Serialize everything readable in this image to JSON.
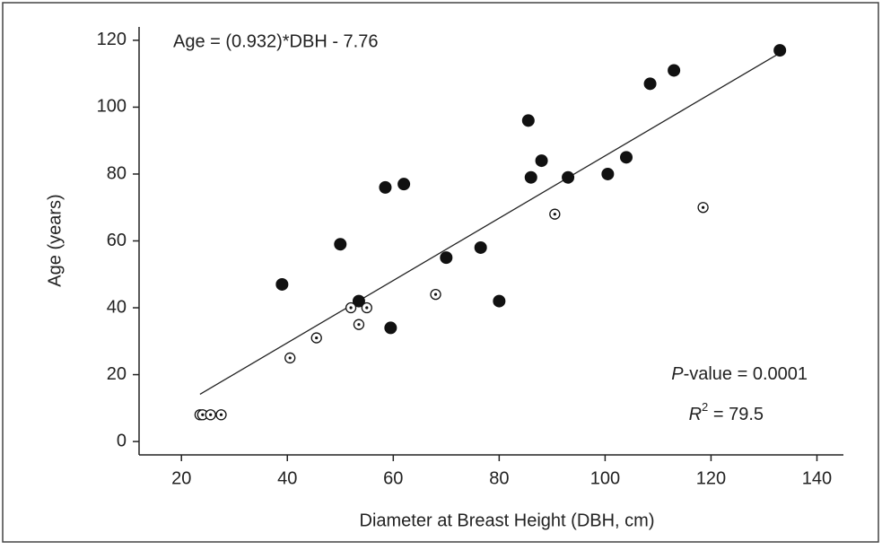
{
  "chart_data": {
    "type": "scatter",
    "xlabel": "Diameter at Breast Height (DBH, cm)",
    "ylabel": "Age (years)",
    "xlim": [
      12,
      145
    ],
    "xticks": [
      20,
      40,
      60,
      80,
      100,
      120,
      140
    ],
    "ylim": [
      -4,
      124
    ],
    "yticks": [
      0,
      20,
      40,
      60,
      80,
      100,
      120
    ],
    "series": [
      {
        "marker": "filled",
        "color": "#111111",
        "x": [
          133,
          113,
          108.5,
          85.5,
          86,
          88,
          93,
          100.5,
          104,
          58.5,
          62,
          50,
          39,
          53.5,
          59.5,
          70,
          76.5,
          80
        ],
        "values": [
          117,
          111,
          107,
          96,
          79,
          84,
          79,
          80,
          85,
          76,
          77,
          59,
          47,
          42,
          34,
          55,
          58,
          42
        ]
      },
      {
        "marker": "open",
        "color": "#111111",
        "x": [
          118.5,
          90.5,
          68,
          55,
          52,
          53.5,
          45.5,
          40.5,
          23.5,
          24,
          25.5,
          27.5
        ],
        "values": [
          70,
          68,
          44,
          40,
          40,
          35,
          31,
          25,
          8,
          8,
          8,
          8
        ]
      }
    ],
    "fit": {
      "slope": 0.932,
      "intercept": -7.76,
      "x_range": [
        23.5,
        133.3
      ]
    },
    "equation": "Age = (0.932)*DBH - 7.76",
    "p_value": {
      "italic": "P",
      "text": "-value = 0.0001"
    },
    "r_squared": {
      "italic": "R",
      "sup": "2",
      "text": " = 79.5"
    }
  }
}
